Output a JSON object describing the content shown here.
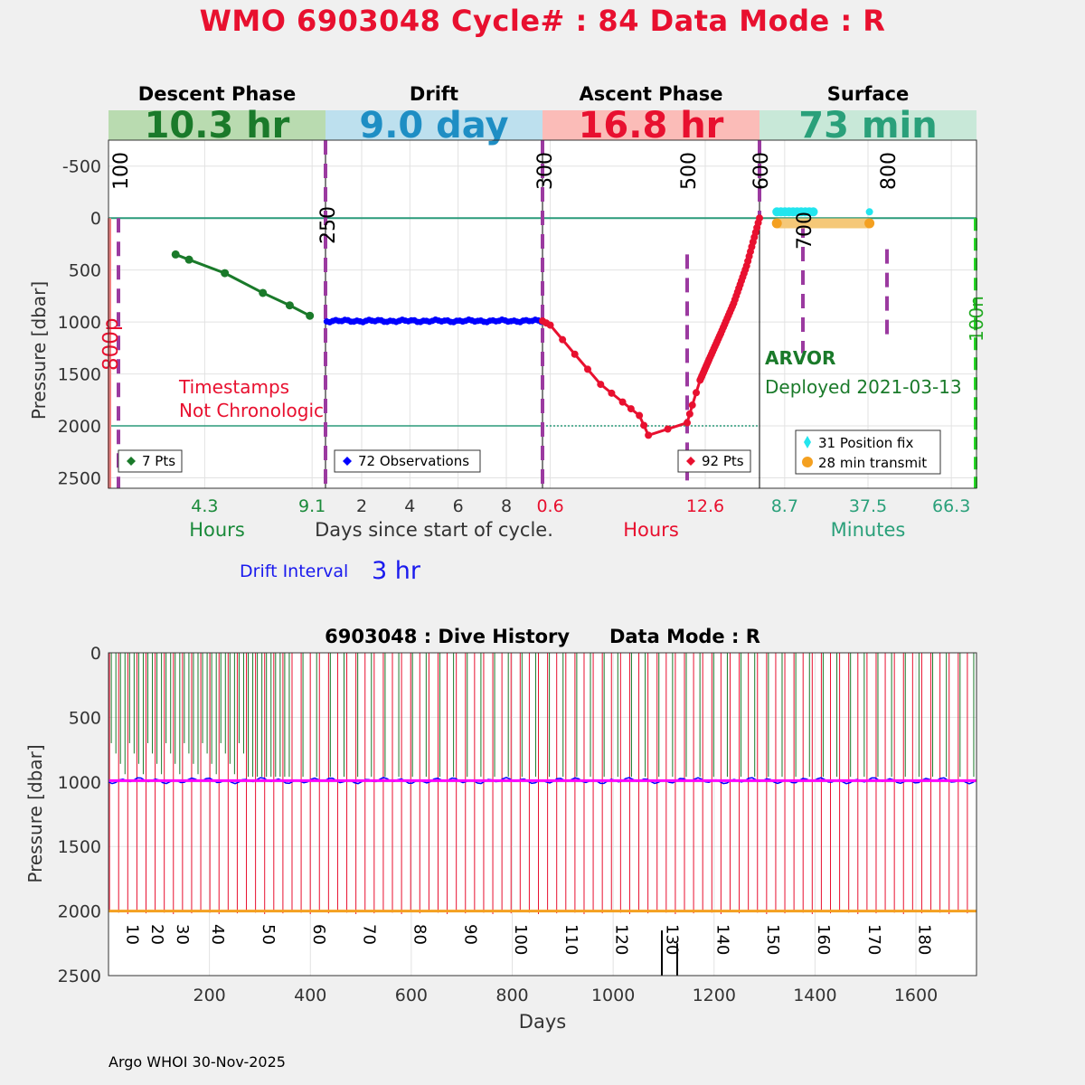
{
  "title": "WMO 6903048   Cycle# : 84   Data Mode : R",
  "footer": "Argo WHOI 30-Nov-2025",
  "chart_data": [
    {
      "type": "line",
      "name": "cycle-profile",
      "ylabel": "Pressure [dbar]",
      "ylim": [
        2600,
        -750
      ],
      "yticks": [
        -500,
        0,
        500,
        1000,
        1500,
        2000,
        2500
      ],
      "panels": [
        {
          "id": "descent",
          "phase": "Descent Phase",
          "duration": "10.3 hr",
          "banner_color": "#b9dbb0",
          "value_color": "#1a7a2a",
          "xunit": "Hours",
          "xunit_color": "#1a8a3a",
          "xlim": [
            0,
            9.7
          ],
          "xticks": [
            4.3,
            9.1
          ],
          "xtick_labels": [
            "4.3",
            "9.1"
          ],
          "tick_color": "#1a8a3a",
          "series": [
            {
              "name": "descent",
              "color": "#1a7a2a",
              "x": [
                3.0,
                3.6,
                5.2,
                6.9,
                8.1,
                9.0
              ],
              "y": [
                350,
                400,
                530,
                720,
                840,
                940
              ]
            }
          ],
          "legend": "7 Pts",
          "legend_color": "#1a7a2a",
          "annotations": [
            "Timestamps",
            "Not Chronologic"
          ]
        },
        {
          "id": "drift",
          "phase": "Drift",
          "duration": "9.0 day",
          "banner_color": "#bde0ee",
          "value_color": "#1e8ec4",
          "xunit": "Days since start of cycle.",
          "xunit_color": "#333333",
          "xlim": [
            0.5,
            9.5
          ],
          "xticks": [
            2,
            4,
            6,
            8
          ],
          "xtick_labels": [
            "2",
            "4",
            "6",
            "8"
          ],
          "tick_color": "#333333",
          "series": [
            {
              "name": "drift",
              "color": "#0000ff",
              "y_mean": 990
            }
          ],
          "legend": "72 Observations",
          "legend_color": "#0000ff"
        },
        {
          "id": "ascent",
          "phase": "Ascent Phase",
          "duration": "16.8 hr",
          "banner_color": "#fbbcb8",
          "value_color": "#e8102f",
          "xunit": "Hours",
          "xunit_color": "#e8102f",
          "xlim": [
            0,
            16.8
          ],
          "xticks": [
            0.6,
            12.6
          ],
          "xtick_labels": [
            "0.6",
            "12.6"
          ],
          "tick_color": "#e8102f",
          "series": [
            {
              "name": "ascent",
              "color": "#e8102f",
              "x": [
                0,
                0.6,
                2.5,
                4.5,
                6.2,
                7.5,
                8.2,
                11.2,
                11.6,
                12.2,
                12.9,
                13.8,
                14.8,
                15.8,
                16.8
              ],
              "y": [
                990,
                1030,
                1310,
                1600,
                1770,
                1900,
                2090,
                1970,
                1800,
                1560,
                1360,
                1110,
                820,
                460,
                0
              ]
            }
          ],
          "legend": "92 Pts",
          "legend_color": "#e8102f"
        },
        {
          "id": "surface",
          "phase": "Surface",
          "duration": "73 min",
          "banner_color": "#c8e8d8",
          "value_color": "#2aa07a",
          "xunit": "Minutes",
          "xunit_color": "#2aa07a",
          "xlim": [
            0,
            75
          ],
          "xticks": [
            8.7,
            37.5,
            66.3
          ],
          "xtick_labels": [
            "8.7",
            "37.5",
            "66.3"
          ],
          "tick_color": "#2aa07a",
          "float_type": "ARVOR",
          "deployed": "Deployed 2021-03-13",
          "legend_items": [
            "31 Position fix",
            "28 min transmit"
          ]
        }
      ],
      "vertical_labels": [
        "100",
        "250",
        "300",
        "500",
        "600",
        "700",
        "800",
        "800p",
        "100n"
      ],
      "drift_interval_label": "Drift Interval",
      "drift_interval_value": "3 hr"
    },
    {
      "type": "line",
      "name": "dive-history",
      "title": "6903048 : Dive History      Data Mode : R",
      "xlabel": "Days",
      "ylabel": "Pressure [dbar]",
      "xlim": [
        0,
        1720
      ],
      "ylim": [
        2500,
        0
      ],
      "xticks": [
        200,
        400,
        600,
        800,
        1000,
        1200,
        1400,
        1600
      ],
      "yticks": [
        0,
        500,
        1000,
        1500,
        2000,
        2500
      ],
      "cycle_labels": [
        "10",
        "20",
        "30",
        "40",
        "50",
        "60",
        "70",
        "80",
        "90",
        "100",
        "110",
        "120",
        "130",
        "140",
        "150",
        "160",
        "170",
        "180"
      ],
      "cycle_label_days": [
        40,
        90,
        140,
        210,
        310,
        410,
        510,
        610,
        710,
        810,
        910,
        1010,
        1110,
        1210,
        1310,
        1410,
        1510,
        1610
      ],
      "cycles": 190,
      "first_day": 2,
      "profile_interval_days": 9,
      "park_pressure": 990,
      "profile_pressure": 2000,
      "series_colors": {
        "ascent": "#e8102f",
        "descent": "#1a7a2a",
        "park": "#0000ff",
        "park_mean": "#ff00ff",
        "bottom": "#f4a020"
      }
    }
  ]
}
